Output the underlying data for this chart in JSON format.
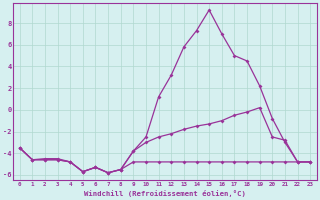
{
  "xlabel": "Windchill (Refroidissement éolien,°C)",
  "bg_color": "#d6f0f0",
  "grid_color": "#b0d8d0",
  "line_color": "#993399",
  "spine_color": "#993399",
  "xlim": [
    -0.5,
    23.5
  ],
  "ylim": [
    -6.5,
    9.8
  ],
  "yticks": [
    -6,
    -4,
    -2,
    0,
    2,
    4,
    6,
    8
  ],
  "xticks": [
    0,
    1,
    2,
    3,
    4,
    5,
    6,
    7,
    8,
    9,
    10,
    11,
    12,
    13,
    14,
    15,
    16,
    17,
    18,
    19,
    20,
    21,
    22,
    23
  ],
  "line1_flat": [
    -3.5,
    -4.6,
    -4.6,
    -4.6,
    -4.8,
    -5.7,
    -5.3,
    -5.8,
    -5.5,
    -4.8,
    -4.8,
    -4.8,
    -4.8,
    -4.8,
    -4.8,
    -4.8,
    -4.8,
    -4.8,
    -4.8,
    -4.8,
    -4.8,
    -4.8,
    -4.8,
    -4.8
  ],
  "line2_peak": [
    -3.5,
    -4.6,
    -4.6,
    -4.6,
    -4.8,
    -5.7,
    -5.3,
    -5.8,
    -5.5,
    -3.8,
    -2.5,
    1.2,
    3.2,
    5.8,
    7.3,
    9.2,
    7.0,
    5.0,
    4.5,
    2.2,
    -0.8,
    -3.0,
    -4.8,
    -4.8
  ],
  "line3_slope": [
    -3.5,
    -4.6,
    -4.5,
    -4.5,
    -4.8,
    -5.7,
    -5.3,
    -5.8,
    -5.5,
    -3.8,
    -3.0,
    -2.5,
    -2.2,
    -1.8,
    -1.5,
    -1.3,
    -1.0,
    -0.5,
    -0.2,
    0.2,
    -2.5,
    -2.8,
    -4.8,
    -4.8
  ]
}
